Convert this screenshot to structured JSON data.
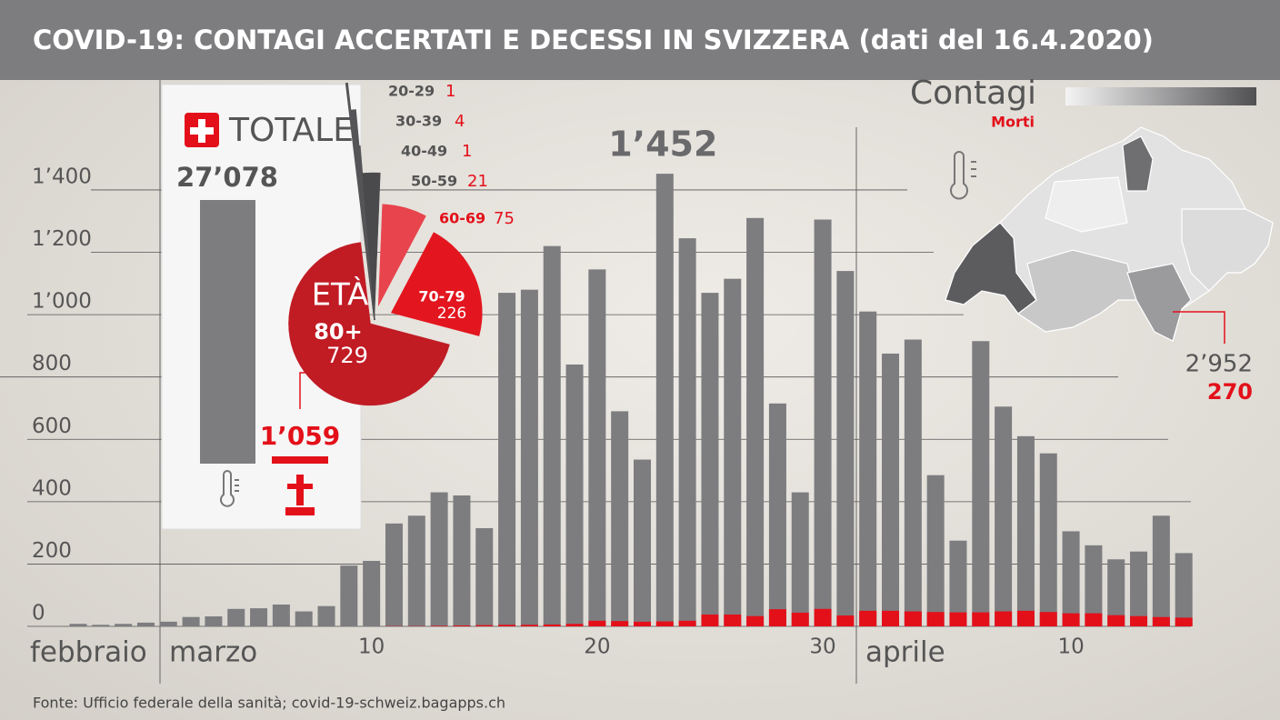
{
  "chart_data": [
    {
      "type": "bar",
      "title": "COVID-19: CONTAGI ACCERTATI E DECESSI IN SVIZZERA (dati del 16.4.2020)",
      "categories": [
        null,
        null,
        null,
        null,
        null,
        null,
        null,
        null,
        null,
        null,
        null,
        null,
        null,
        "10",
        null,
        null,
        null,
        null,
        null,
        null,
        null,
        null,
        null,
        "20",
        null,
        null,
        null,
        null,
        null,
        null,
        null,
        null,
        null,
        "30",
        null,
        null,
        null,
        null,
        null,
        null,
        null,
        null,
        null,
        null,
        "10",
        null,
        null,
        null,
        null,
        null
      ],
      "month_labels": [
        "febbraio",
        "marzo",
        "aprile"
      ],
      "series": [
        {
          "name": "Contagi",
          "color": "#7d7d80",
          "values": [
            8,
            5,
            8,
            12,
            15,
            30,
            32,
            56,
            58,
            70,
            48,
            65,
            195,
            210,
            330,
            355,
            430,
            420,
            315,
            1070,
            1080,
            1220,
            840,
            1145,
            690,
            535,
            1452,
            1245,
            1070,
            1115,
            1310,
            715,
            430,
            1305,
            1140,
            1010,
            875,
            920,
            485,
            275,
            915,
            705,
            610,
            555,
            305,
            260,
            215,
            240,
            355,
            235
          ],
          "value_labels": [
            null,
            null,
            null,
            null,
            null,
            null,
            null,
            null,
            null,
            null,
            null,
            null,
            null,
            null,
            null,
            null,
            null,
            null,
            null,
            null,
            null,
            null,
            null,
            null,
            null,
            null,
            "1’452",
            null,
            null,
            null,
            null,
            null,
            null,
            null,
            null,
            null,
            null,
            null,
            null,
            null,
            null,
            null,
            null,
            null,
            null,
            null,
            null,
            null,
            null,
            null
          ]
        },
        {
          "name": "Morti",
          "color": "#e3101a",
          "values": [
            0,
            0,
            0,
            0,
            0,
            0,
            0,
            0,
            0,
            0,
            0,
            0,
            0,
            0,
            1,
            1,
            2,
            3,
            4,
            5,
            5,
            6,
            8,
            18,
            17,
            15,
            16,
            18,
            38,
            38,
            33,
            55,
            44,
            56,
            35,
            50,
            50,
            48,
            46,
            45,
            45,
            48,
            50,
            46,
            42,
            42,
            36,
            33,
            30,
            28
          ]
        }
      ],
      "ylim": [
        0,
        1500
      ],
      "yticks": [
        0,
        200,
        400,
        600,
        800,
        {
          "value": 1000,
          "label": "1’000"
        },
        {
          "value": 1200,
          "label": "1’200"
        },
        {
          "value": 1400,
          "label": "1’400"
        }
      ],
      "grid": true
    },
    {
      "type": "pie",
      "title": "ETÀ",
      "categories": [
        "20-29",
        "30-39",
        "40-49",
        "50-59",
        "60-69",
        "70-79",
        "80+"
      ],
      "values": [
        1,
        4,
        1,
        21,
        75,
        226,
        729
      ],
      "colors": [
        "#555558",
        "#555558",
        "#555558",
        "#4a4a4d",
        "#e8444d",
        "#e3161f",
        "#c11b24"
      ]
    }
  ],
  "totals": {
    "title": "TOTALE",
    "cases": {
      "value": 27078,
      "label": "27’078"
    },
    "deaths": {
      "value": 1059,
      "label": "1’059"
    }
  },
  "map": {
    "legend": [
      "Contagi",
      "Morti"
    ],
    "cases": {
      "value": 2952,
      "label": "2’952"
    },
    "deaths": 270
  },
  "source": "Fonte:  Ufficio federale della sanità; covid-19-schweiz.bagapps.ch"
}
